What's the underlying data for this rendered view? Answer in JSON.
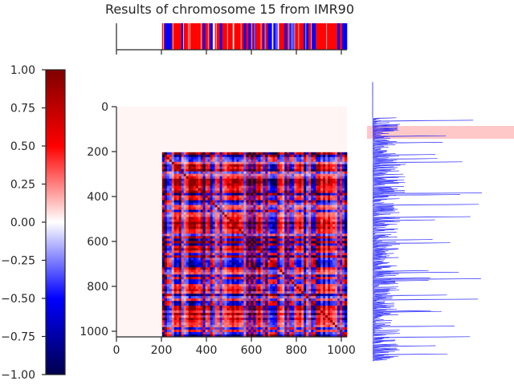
{
  "chart_data": [
    {
      "type": "heatmap",
      "title": "Results of chromosome 15 from IMR90",
      "colormap": "seismic",
      "xlim": [
        0,
        1025
      ],
      "ylim": [
        1025,
        0
      ],
      "xticks": [
        0,
        200,
        400,
        600,
        800,
        1000
      ],
      "yticks": [
        0,
        200,
        400,
        600,
        800,
        1000
      ],
      "empty_rows_until": 210,
      "block_bins": [
        [
          260,
          420
        ],
        [
          440,
          660
        ],
        [
          760,
          830
        ],
        [
          880,
          1000
        ]
      ],
      "xlabel": "",
      "ylabel": ""
    },
    {
      "type": "colorbar",
      "range": [
        -1.0,
        1.0
      ],
      "ticks": [
        1.0,
        0.75,
        0.5,
        0.25,
        0.0,
        -0.25,
        -0.5,
        -0.75,
        -1.0
      ],
      "tick_labels": [
        "1.00",
        "0.75",
        "0.50",
        "0.25",
        "0.00",
        "−0.25",
        "−0.50",
        "−0.75",
        "−1.00"
      ],
      "colors": [
        "#00004c",
        "#0000ff",
        "#ffffff",
        "#ff0000",
        "#7f0000"
      ]
    },
    {
      "type": "bar",
      "name": "compartment track (top)",
      "xlim": [
        0,
        1025
      ],
      "positive_color": "#ff0000",
      "negative_color": "#0000ff",
      "highlight_bins": [
        210,
        240
      ],
      "xticks": [
        0,
        200,
        400,
        600,
        800,
        1000
      ]
    },
    {
      "type": "line",
      "name": "coverage profile (right)",
      "ylim": [
        1025,
        0
      ],
      "color": "#0000ff",
      "highlight_range": [
        85,
        140
      ],
      "highlight_color": "#ffc8c8"
    }
  ],
  "tick_labels": {
    "heatmap_x": [
      "0",
      "200",
      "400",
      "600",
      "800",
      "1000"
    ],
    "heatmap_y": [
      "0",
      "200",
      "400",
      "600",
      "800",
      "1000"
    ]
  }
}
